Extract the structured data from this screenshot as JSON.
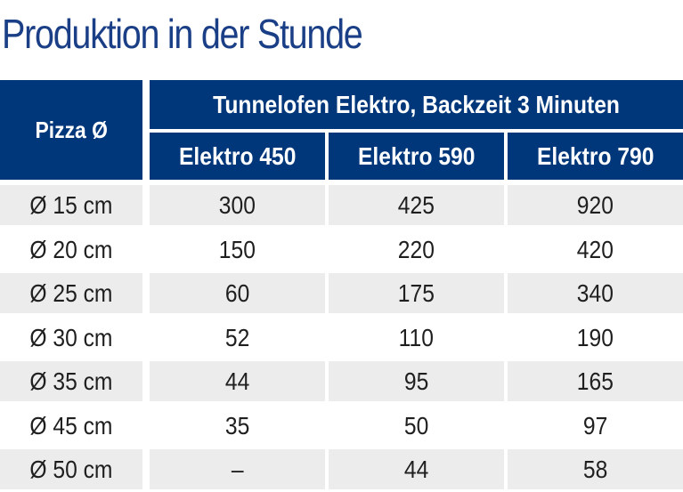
{
  "title": "Produktion in der Stunde",
  "table": {
    "pizza_header": "Pizza Ø",
    "group_header": "Tunnelofen Elektro, Backzeit 3 Minuten",
    "columns": [
      "Elektro 450",
      "Elektro 590",
      "Elektro 790"
    ],
    "rows": [
      {
        "size": "Ø 15 cm",
        "values": [
          "300",
          "425",
          "920"
        ]
      },
      {
        "size": "Ø 20 cm",
        "values": [
          "150",
          "220",
          "420"
        ]
      },
      {
        "size": "Ø 25 cm",
        "values": [
          "60",
          "175",
          "340"
        ]
      },
      {
        "size": "Ø 30 cm",
        "values": [
          "52",
          "110",
          "190"
        ]
      },
      {
        "size": "Ø 35 cm",
        "values": [
          "44",
          "95",
          "165"
        ]
      },
      {
        "size": "Ø 45 cm",
        "values": [
          "35",
          "50",
          "97"
        ]
      },
      {
        "size": "Ø 50 cm",
        "values": [
          "–",
          "44",
          "58"
        ]
      }
    ]
  },
  "colors": {
    "header_bg": "#00367a",
    "title_color": "#1a3f86",
    "row_shade": "#ececec"
  }
}
